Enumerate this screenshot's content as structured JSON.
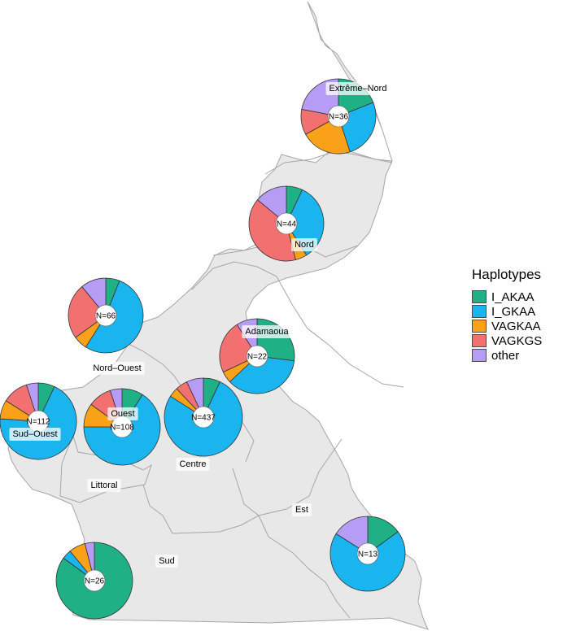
{
  "legend": {
    "title": "Haplotypes",
    "items": [
      {
        "label": "I_AKAA",
        "color": "#1fb086"
      },
      {
        "label": "I_GKAA",
        "color": "#1ab5ee"
      },
      {
        "label": "VAGKAA",
        "color": "#f9a219"
      },
      {
        "label": "VAGKGS",
        "color": "#f27170"
      },
      {
        "label": "other",
        "color": "#b79cf6"
      }
    ]
  },
  "regions": [
    {
      "name": "Extrême–Nord",
      "n_label": "N=36",
      "proportions": [
        0.19,
        0.26,
        0.22,
        0.11,
        0.22
      ]
    },
    {
      "name": "Nord",
      "n_label": "N=44",
      "proportions": [
        0.07,
        0.34,
        0.05,
        0.4,
        0.14
      ]
    },
    {
      "name": "Nord–Ouest",
      "n_label": "N=66",
      "proportions": [
        0.06,
        0.53,
        0.06,
        0.24,
        0.11
      ]
    },
    {
      "name": "Adamaoua",
      "n_label": "N=22",
      "proportions": [
        0.27,
        0.36,
        0.05,
        0.23,
        0.09
      ]
    },
    {
      "name": "Sud–Ouest",
      "n_label": "N=112",
      "proportions": [
        0.07,
        0.69,
        0.08,
        0.11,
        0.05
      ]
    },
    {
      "name": "Ouest",
      "n_label": "N=108",
      "proportions": [
        0.09,
        0.66,
        0.1,
        0.1,
        0.05
      ]
    },
    {
      "name": "Centre",
      "n_label": "N=437",
      "proportions": [
        0.07,
        0.77,
        0.04,
        0.05,
        0.07
      ]
    },
    {
      "name": "Littoral",
      "n_label": "",
      "proportions": []
    },
    {
      "name": "Est",
      "n_label": "N=13",
      "proportions": [
        0.15,
        0.69,
        0.0,
        0.0,
        0.16
      ]
    },
    {
      "name": "Sud",
      "n_label": "N=26",
      "proportions": [
        0.85,
        0.04,
        0.07,
        0.0,
        0.04
      ]
    }
  ]
}
